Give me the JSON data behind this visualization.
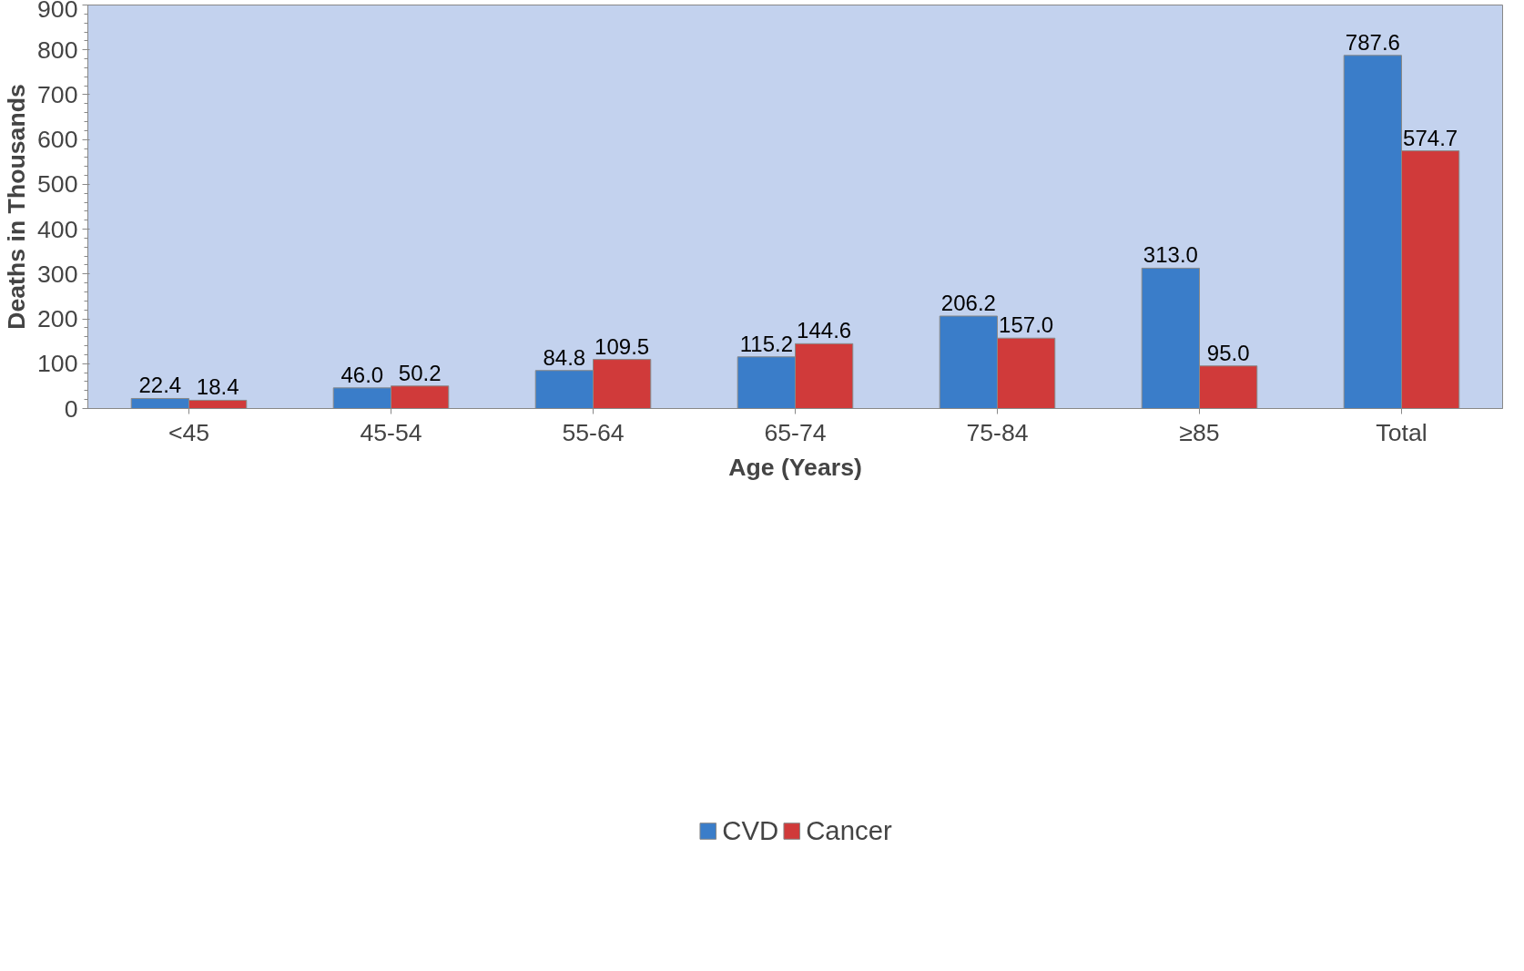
{
  "chart_data": {
    "type": "bar",
    "xlabel": "Age (Years)",
    "ylabel": "Deaths in Thousands",
    "categories": [
      "<45",
      "45-54",
      "55-64",
      "65-74",
      "75-84",
      "≥85",
      "Total"
    ],
    "series": [
      {
        "name": "CVD",
        "color": "#3a7dc9",
        "values": [
          22.4,
          46.0,
          84.8,
          115.2,
          206.2,
          313.0,
          787.6
        ],
        "value_labels": [
          "22.4",
          "46.0",
          "84.8",
          "115.2",
          "206.2",
          "313.0",
          "787.6"
        ]
      },
      {
        "name": "Cancer",
        "color": "#d03a3a",
        "values": [
          18.4,
          50.2,
          109.5,
          144.6,
          157.0,
          95.0,
          574.7
        ],
        "value_labels": [
          "18.4",
          "50.2",
          "109.5",
          "144.6",
          "157.0",
          "95.0",
          "574.7"
        ]
      }
    ],
    "ylim": [
      0,
      900
    ],
    "yticks": [
      0,
      100,
      200,
      300,
      400,
      500,
      600,
      700,
      800,
      900
    ],
    "grid": false,
    "legend": "bottom"
  }
}
